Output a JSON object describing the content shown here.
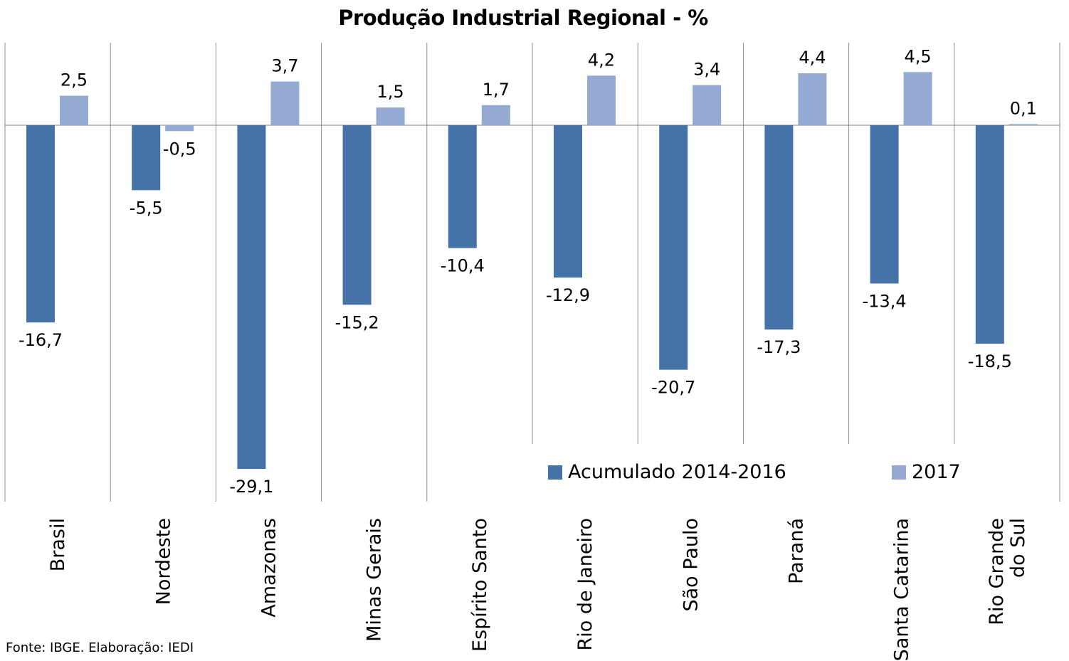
{
  "chart_data": {
    "type": "bar",
    "title": "Produção Industrial Regional - %",
    "categories": [
      "Brasil",
      "Nordeste",
      "Amazonas",
      "Minas Gerais",
      "Espírito Santo",
      "Rio de Janeiro",
      "São Paulo",
      "Paraná",
      "Santa Catarina",
      "Rio Grande do Sul"
    ],
    "category_lines": [
      [
        "Brasil"
      ],
      [
        "Nordeste"
      ],
      [
        "Amazonas"
      ],
      [
        "Minas Gerais"
      ],
      [
        "Espírito Santo"
      ],
      [
        "Rio de Janeiro"
      ],
      [
        "São Paulo"
      ],
      [
        "Paraná"
      ],
      [
        "Santa Catarina"
      ],
      [
        "Rio Grande",
        "do Sul"
      ]
    ],
    "series": [
      {
        "name": "Acumulado 2014-2016",
        "color": "#4572A7",
        "values": [
          -16.7,
          -5.5,
          -29.1,
          -15.2,
          -10.4,
          -12.9,
          -20.7,
          -17.3,
          -13.4,
          -18.5
        ],
        "labels": [
          "-16,7",
          "-5,5",
          "-29,1",
          "-15,2",
          "-10,4",
          "-12,9",
          "-20,7",
          "-17,3",
          "-13,4",
          "-18,5"
        ]
      },
      {
        "name": "2017",
        "color": "#94AAD3",
        "values": [
          2.5,
          -0.5,
          3.7,
          1.5,
          1.7,
          4.2,
          3.4,
          4.4,
          4.5,
          0.1
        ],
        "labels": [
          "2,5",
          "-0,5",
          "3,7",
          "1,5",
          "1,7",
          "4,2",
          "3,4",
          "4,4",
          "4,5",
          "0,1"
        ]
      }
    ],
    "ylim": [
      -32,
      7
    ],
    "grid": "vertical-category-separators",
    "legend": "bottom-right inside plot"
  },
  "source_note": "Fonte: IBGE. Elaboração: IEDI"
}
